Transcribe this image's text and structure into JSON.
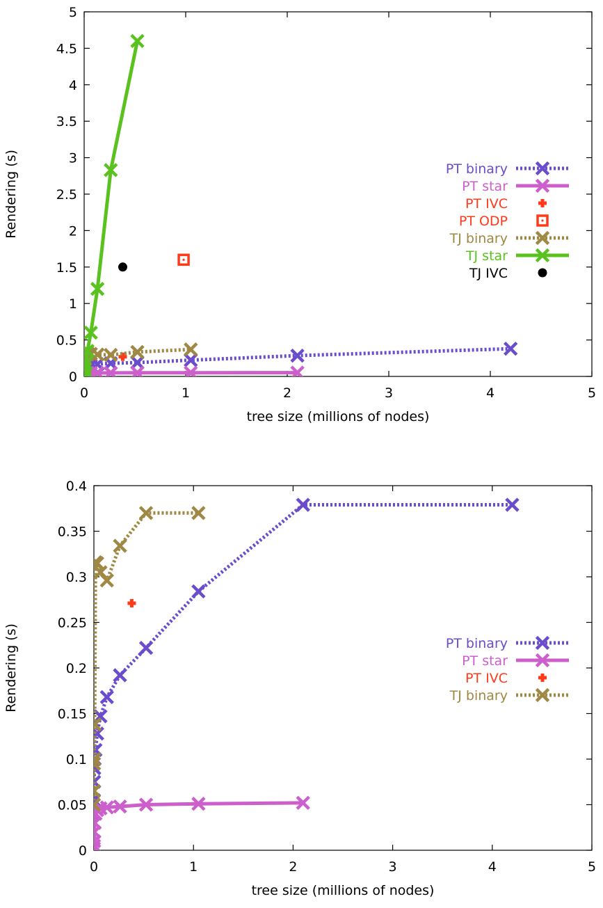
{
  "chart_data": [
    {
      "type": "line",
      "xlabel": "tree size (millions of nodes)",
      "ylabel": "Rendering (s)",
      "xlim": [
        0,
        5
      ],
      "ylim": [
        0,
        5
      ],
      "xticks": [
        "0",
        "1",
        "2",
        "3",
        "4",
        "5"
      ],
      "yticks": [
        "0",
        "0.5",
        "1",
        "1.5",
        "2",
        "2.5",
        "3",
        "3.5",
        "4",
        "4.5",
        "5"
      ],
      "grid": false,
      "legend_position": "right",
      "series": [
        {
          "name": "PT binary",
          "color": "#6a4ccc",
          "style": "dotted-line-x",
          "x": [
            0.0005,
            0.001,
            0.002,
            0.004,
            0.008,
            0.016,
            0.033,
            0.066,
            0.131,
            0.262,
            0.524,
            1.05,
            2.1,
            4.2
          ],
          "y": [
            0.05,
            0.07,
            0.08,
            0.09,
            0.1,
            0.11,
            0.128,
            0.147,
            0.167,
            0.18,
            0.19,
            0.223,
            0.285,
            0.38
          ]
        },
        {
          "name": "PT star",
          "color": "#cc5fcc",
          "style": "solid-line-x",
          "x": [
            0.0005,
            0.001,
            0.002,
            0.004,
            0.008,
            0.016,
            0.033,
            0.066,
            0.131,
            0.262,
            0.524,
            1.05,
            2.1
          ],
          "y": [
            0.01,
            0.02,
            0.03,
            0.04,
            0.043,
            0.045,
            0.046,
            0.047,
            0.048,
            0.049,
            0.05,
            0.051,
            0.052
          ]
        },
        {
          "name": "PT IVC",
          "color": "#ff3a1a",
          "style": "plus",
          "x": [
            0.38
          ],
          "y": [
            0.27
          ]
        },
        {
          "name": "PT ODP",
          "color": "#ff3a1a",
          "style": "dotted-square",
          "x": [
            0.98
          ],
          "y": [
            1.6
          ]
        },
        {
          "name": "TJ binary",
          "color": "#9e8844",
          "style": "dotted-line-x",
          "x": [
            0.0005,
            0.001,
            0.002,
            0.004,
            0.008,
            0.016,
            0.033,
            0.066,
            0.131,
            0.262,
            0.524,
            1.05
          ],
          "y": [
            0.04,
            0.06,
            0.09,
            0.13,
            0.24,
            0.3,
            0.32,
            0.31,
            0.3,
            0.295,
            0.335,
            0.37
          ]
        },
        {
          "name": "TJ star",
          "color": "#5ac21e",
          "style": "solid-line-x",
          "x": [
            0.0005,
            0.001,
            0.002,
            0.004,
            0.008,
            0.016,
            0.033,
            0.066,
            0.131,
            0.262,
            0.524
          ],
          "y": [
            0.01,
            0.02,
            0.03,
            0.06,
            0.1,
            0.18,
            0.35,
            0.6,
            1.2,
            2.83,
            4.6
          ]
        },
        {
          "name": "TJ IVC",
          "color": "#000000",
          "style": "dot",
          "x": [
            0.38
          ],
          "y": [
            1.5
          ]
        }
      ]
    },
    {
      "type": "line",
      "xlabel": "tree size (millions of nodes)",
      "ylabel": "Rendering (s)",
      "xlim": [
        0,
        5
      ],
      "ylim": [
        0,
        0.4
      ],
      "xticks": [
        "0",
        "1",
        "2",
        "3",
        "4",
        "5"
      ],
      "yticks": [
        "0",
        "0.05",
        "0.1",
        "0.15",
        "0.2",
        "0.25",
        "0.3",
        "0.35",
        "0.4"
      ],
      "grid": false,
      "legend_position": "right",
      "series": [
        {
          "name": "PT binary",
          "color": "#6a4ccc",
          "style": "dotted-line-x",
          "x": [
            0.0005,
            0.001,
            0.002,
            0.004,
            0.008,
            0.016,
            0.033,
            0.066,
            0.131,
            0.262,
            0.524,
            1.05,
            2.1,
            4.2
          ],
          "y": [
            0.04,
            0.055,
            0.075,
            0.09,
            0.1,
            0.11,
            0.128,
            0.147,
            0.168,
            0.192,
            0.222,
            0.284,
            0.379,
            0.379
          ]
        },
        {
          "name": "PT star",
          "color": "#cc5fcc",
          "style": "solid-line-x",
          "x": [
            0.0005,
            0.001,
            0.002,
            0.004,
            0.008,
            0.016,
            0.033,
            0.066,
            0.131,
            0.262,
            0.524,
            1.05,
            2.1
          ],
          "y": [
            0.002,
            0.005,
            0.01,
            0.02,
            0.03,
            0.04,
            0.044,
            0.046,
            0.047,
            0.048,
            0.05,
            0.051,
            0.052
          ]
        },
        {
          "name": "PT IVC",
          "color": "#ff3a1a",
          "style": "plus",
          "x": [
            0.38
          ],
          "y": [
            0.271
          ]
        },
        {
          "name": "TJ binary",
          "color": "#9e8844",
          "style": "dotted-line-x",
          "x": [
            0.0005,
            0.001,
            0.002,
            0.004,
            0.008,
            0.016,
            0.033,
            0.066,
            0.131,
            0.262,
            0.524,
            1.05
          ],
          "y": [
            0.05,
            0.065,
            0.095,
            0.1,
            0.138,
            0.316,
            0.315,
            0.305,
            0.296,
            0.334,
            0.37,
            0.37
          ]
        }
      ]
    }
  ]
}
